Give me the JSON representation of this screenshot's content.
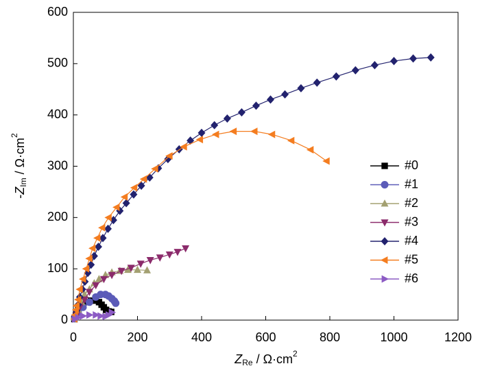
{
  "chart_data": {
    "type": "line",
    "xlabel_parts": [
      "Z",
      "Re",
      " / Ω·cm",
      "2"
    ],
    "ylabel_parts": [
      "-",
      "Z",
      "Im",
      " / Ω·cm",
      "2"
    ],
    "xlim": [
      0,
      1200
    ],
    "xticks": [
      0,
      200,
      400,
      600,
      800,
      1000,
      1200
    ],
    "ylim": [
      0,
      600
    ],
    "yticks": [
      0,
      100,
      200,
      300,
      400,
      500,
      600
    ],
    "legend": "right",
    "series": [
      {
        "name": "#0",
        "color": "#000000",
        "marker": "square",
        "x": [
          3,
          8,
          15,
          25,
          40,
          55,
          70,
          80,
          88,
          95,
          102,
          110,
          118
        ],
        "y": [
          2,
          10,
          20,
          28,
          35,
          38,
          38,
          35,
          30,
          25,
          20,
          17,
          16
        ]
      },
      {
        "name": "#1",
        "color": "#5b5bb8",
        "marker": "circle",
        "x": [
          5,
          15,
          30,
          50,
          70,
          85,
          100,
          110,
          120,
          128,
          132
        ],
        "y": [
          3,
          15,
          25,
          35,
          45,
          50,
          50,
          47,
          42,
          37,
          33
        ]
      },
      {
        "name": "#2",
        "color": "#a3a071",
        "marker": "triangle-up",
        "x": [
          5,
          15,
          25,
          35,
          50,
          65,
          80,
          100,
          120,
          145,
          170,
          200,
          230
        ],
        "y": [
          5,
          20,
          35,
          50,
          60,
          72,
          80,
          88,
          93,
          96,
          98,
          98,
          97
        ]
      },
      {
        "name": "#3",
        "color": "#8b2b6b",
        "marker": "triangle-down",
        "x": [
          10,
          20,
          35,
          50,
          70,
          95,
          120,
          150,
          180,
          210,
          240,
          270,
          300,
          325,
          350
        ],
        "y": [
          10,
          25,
          40,
          55,
          68,
          80,
          88,
          96,
          102,
          110,
          117,
          122,
          128,
          133,
          140
        ]
      },
      {
        "name": "#4",
        "color": "#22226e",
        "marker": "diamond",
        "x": [
          5,
          10,
          15,
          20,
          28,
          36,
          45,
          55,
          65,
          78,
          92,
          108,
          125,
          145,
          165,
          188,
          212,
          238,
          265,
          295,
          330,
          365,
          400,
          440,
          480,
          525,
          570,
          615,
          660,
          710,
          760,
          820,
          880,
          940,
          1000,
          1060,
          1115
        ],
        "y": [
          8,
          18,
          30,
          45,
          60,
          75,
          92,
          108,
          125,
          143,
          160,
          178,
          195,
          213,
          228,
          245,
          262,
          278,
          296,
          314,
          333,
          350,
          365,
          380,
          393,
          405,
          418,
          430,
          440,
          452,
          463,
          475,
          487,
          497,
          505,
          510,
          512
        ]
      },
      {
        "name": "#5",
        "color": "#f47d20",
        "marker": "triangle-left",
        "x": [
          3,
          5,
          8,
          10,
          15,
          20,
          30,
          40,
          50,
          60,
          75,
          90,
          110,
          135,
          160,
          190,
          220,
          255,
          300,
          345,
          395,
          445,
          500,
          565,
          620,
          680,
          740,
          790
        ],
        "y": [
          2,
          10,
          20,
          28,
          40,
          60,
          80,
          100,
          120,
          140,
          160,
          180,
          200,
          220,
          240,
          258,
          275,
          295,
          320,
          338,
          352,
          362,
          368,
          368,
          362,
          350,
          332,
          310
        ]
      },
      {
        "name": "#6",
        "color": "#8c5bc4",
        "marker": "triangle-right",
        "x": [
          5,
          15,
          30,
          50,
          70,
          85,
          100,
          110,
          120
        ],
        "y": [
          2,
          5,
          8,
          10,
          10,
          8,
          7,
          10,
          15
        ]
      }
    ]
  }
}
